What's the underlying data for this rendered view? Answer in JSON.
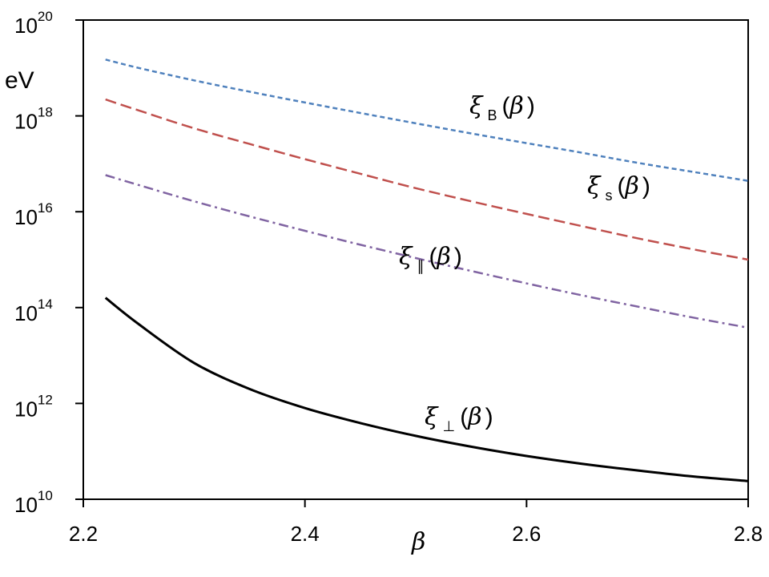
{
  "chart_data": {
    "type": "line",
    "title": "",
    "xlabel": "β",
    "ylabel": "eV",
    "xlim": [
      2.2,
      2.8
    ],
    "ylim": [
      10000000000.0,
      1e+20
    ],
    "yscale": "log",
    "grid": false,
    "legend": "inline",
    "x_ticks": [
      {
        "value": 2.2,
        "label": "2.2"
      },
      {
        "value": 2.4,
        "label": "2.4"
      },
      {
        "value": 2.6,
        "label": "2.6"
      },
      {
        "value": 2.8,
        "label": "2.8"
      }
    ],
    "y_ticks": [
      {
        "value": 10000000000.0,
        "base": "10",
        "exp": "10"
      },
      {
        "value": 1000000000000.0,
        "base": "10",
        "exp": "12"
      },
      {
        "value": 100000000000000.0,
        "base": "10",
        "exp": "14"
      },
      {
        "value": 1e+16,
        "base": "10",
        "exp": "16"
      },
      {
        "value": 1e+18,
        "base": "10",
        "exp": "18"
      },
      {
        "value": 1e+20,
        "base": "10",
        "exp": "20"
      }
    ],
    "x": [
      2.22,
      2.25,
      2.3,
      2.35,
      2.4,
      2.45,
      2.5,
      2.55,
      2.6,
      2.65,
      2.7,
      2.75,
      2.8
    ],
    "series": [
      {
        "name_symbol": "ξ",
        "name_sub": "B",
        "name_arg": "β",
        "color": "#4f81bd",
        "dash": "6 4",
        "values": [
          1.5e+19,
          1e+19,
          5.5e+18,
          3.2e+18,
          1.9e+18,
          1.15e+18,
          7e+17,
          4.3e+17,
          2.7e+17,
          1.7e+17,
          1.05e+17,
          6.8e+16,
          4.4e+16
        ]
      },
      {
        "name_symbol": "ξ",
        "name_sub": "s",
        "name_arg": "β",
        "color": "#c0504d",
        "dash": "14 6",
        "values": [
          2.2e+18,
          1.3e+18,
          5.5e+17,
          2.6e+17,
          1.25e+17,
          6.2e+16,
          3.1e+16,
          1.65e+16,
          9000000000000000.0,
          5000000000000000.0,
          2800000000000000.0,
          1650000000000000.0,
          1000000000000000.0
        ]
      },
      {
        "name_symbol": "ξ",
        "name_sub": "∥",
        "name_arg": "β",
        "color": "#8064a2",
        "dash": "12 5 3 5",
        "values": [
          5.8e+16,
          3.6e+16,
          1.65e+16,
          8000000000000000.0,
          4000000000000000.0,
          2050000000000000.0,
          1080000000000000.0,
          580000000000000.0,
          320000000000000.0,
          180000000000000.0,
          105000000000000.0,
          62000000000000.0,
          38000000000000.0
        ]
      },
      {
        "name_symbol": "ξ",
        "name_sub": "⊥",
        "name_arg": "β",
        "color": "#000000",
        "dash": "",
        "values": [
          160000000000000.0,
          45000000000000.0,
          7000000000000.0,
          2000000000000.0,
          800000000000.0,
          390000000000.0,
          210000000000.0,
          125000000000.0,
          80000000000.0,
          55000000000.0,
          40000000000.0,
          30000000000.0,
          24000000000.0
        ]
      }
    ]
  }
}
